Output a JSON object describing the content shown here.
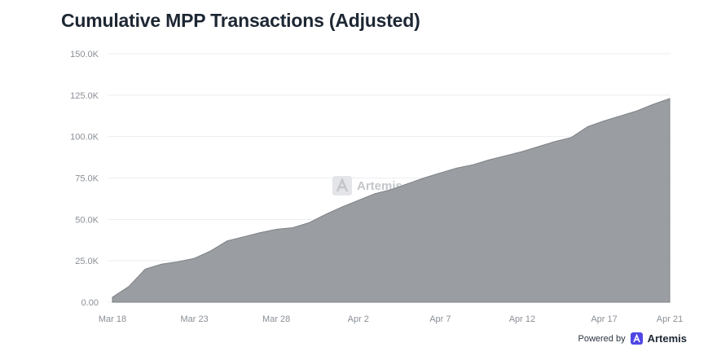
{
  "chart_data": {
    "type": "area",
    "title": "Cumulative MPP Transactions (Adjusted)",
    "xlabel": "",
    "ylabel": "",
    "ylim": [
      0,
      150000
    ],
    "y_ticks": [
      "0.00",
      "25.0K",
      "50.0K",
      "75.0K",
      "100.0K",
      "125.0K",
      "150.0K"
    ],
    "x_ticks": [
      "Mar 18",
      "Mar 23",
      "Mar 28",
      "Apr 2",
      "Apr 7",
      "Apr 12",
      "Apr 17",
      "Apr 21"
    ],
    "grid": true,
    "series": [
      {
        "color": "#9a9da1",
        "x": [
          "Mar 18",
          "Mar 19",
          "Mar 20",
          "Mar 21",
          "Mar 22",
          "Mar 23",
          "Mar 24",
          "Mar 25",
          "Mar 26",
          "Mar 27",
          "Mar 28",
          "Mar 29",
          "Mar 30",
          "Mar 31",
          "Apr 1",
          "Apr 2",
          "Apr 3",
          "Apr 4",
          "Apr 5",
          "Apr 6",
          "Apr 7",
          "Apr 8",
          "Apr 9",
          "Apr 10",
          "Apr 11",
          "Apr 12",
          "Apr 13",
          "Apr 14",
          "Apr 15",
          "Apr 16",
          "Apr 17",
          "Apr 18",
          "Apr 19",
          "Apr 20",
          "Apr 21"
        ],
        "values": [
          3000,
          9500,
          20000,
          23000,
          24500,
          26500,
          31000,
          37000,
          39500,
          42000,
          44000,
          45000,
          48000,
          53000,
          57500,
          61500,
          65500,
          68000,
          71500,
          75000,
          78000,
          81000,
          83000,
          86000,
          88500,
          91000,
          94000,
          97000,
          99500,
          106000,
          109500,
          112500,
          115500,
          119500,
          123000
        ]
      }
    ]
  },
  "watermark": {
    "text": "Artemis",
    "icon": "artemis-logo-icon"
  },
  "credit": {
    "powered": "Powered by",
    "brand": "Artemis",
    "icon": "artemis-logo-icon",
    "color": "#4f46e5"
  }
}
